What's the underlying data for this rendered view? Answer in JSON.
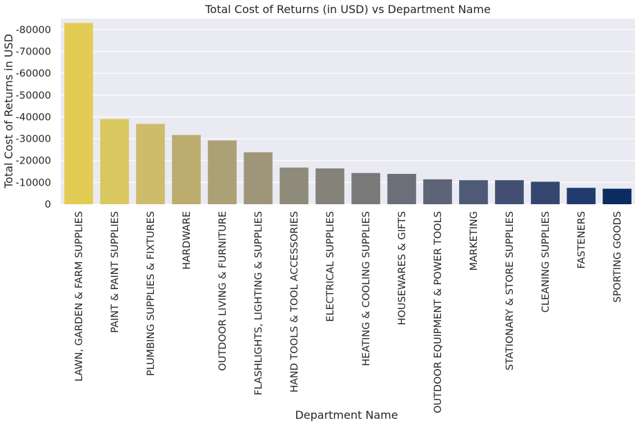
{
  "chart_data": {
    "type": "bar",
    "title": "Total Cost of Returns (in USD) vs Department Name",
    "xlabel": "Department Name",
    "ylabel": "Total Cost of Returns in USD",
    "categories": [
      "LAWN, GARDEN & FARM SUPPLIES",
      "PAINT & PAINT SUPPLIES",
      "PLUMBING SUPPLIES & FIXTURES",
      "HARDWARE",
      "OUTDOOR LIVING & FURNITURE",
      "FLASHLIGHTS, LIGHTING & SUPPLIES",
      "HAND TOOLS & TOOL ACCESSORIES",
      "ELECTRICAL SUPPLIES",
      "HEATING & COOLING SUPPLIES",
      "HOUSEWARES & GIFTS",
      "OUTDOOR EQUIPMENT & POWER TOOLS",
      "MARKETING",
      "STATIONARY & STORE SUPPLIES",
      "CLEANING SUPPLIES",
      "FASTENERS",
      "SPORTING GOODS"
    ],
    "values": [
      -83000,
      -39000,
      -36800,
      -31700,
      -29200,
      -23800,
      -16800,
      -16400,
      -14300,
      -13900,
      -11400,
      -11000,
      -11000,
      -10300,
      -7500,
      -7100
    ],
    "yticks": [
      0,
      -10000,
      -20000,
      -30000,
      -40000,
      -50000,
      -60000,
      -70000,
      -80000
    ],
    "ytick_labels": [
      "0",
      "-10000",
      "-20000",
      "-30000",
      "-40000",
      "-50000",
      "-60000",
      "-70000",
      "-80000"
    ],
    "ylim": [
      0,
      -85000
    ],
    "y_axis_inverted": true,
    "grid": true,
    "colors": [
      "#e2cc53",
      "#d9c760",
      "#cdbc6a",
      "#bcad6f",
      "#aca075",
      "#9f9679",
      "#8f8b7a",
      "#848279",
      "#797979",
      "#6c6e79",
      "#5e6478",
      "#4f5a77",
      "#434f73",
      "#344670",
      "#223b6f",
      "#0b2b62"
    ],
    "background": "#eaeaf2"
  }
}
